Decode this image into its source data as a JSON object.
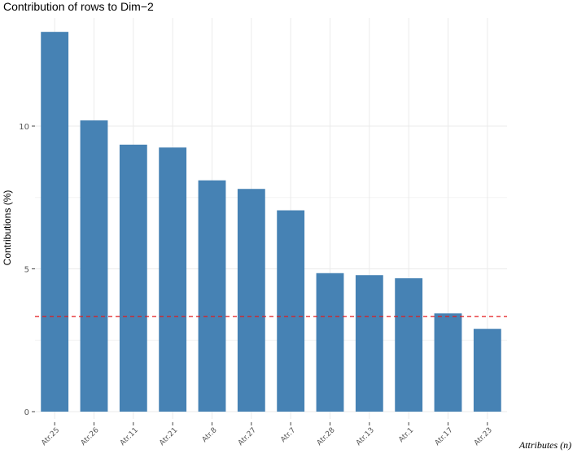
{
  "chart_data": {
    "type": "bar",
    "title": "Contribution of rows to Dim−2",
    "xlabel": "Attributes (n)",
    "ylabel": "Contributions (%)",
    "categories": [
      "Atr.25",
      "Atr.26",
      "Atr.11",
      "Atr.21",
      "Atr.8",
      "Atr.27",
      "Atr.7",
      "Atr.28",
      "Atr.13",
      "Atr.1",
      "Atr.17",
      "Atr.23"
    ],
    "values": [
      13.3,
      10.2,
      9.35,
      9.25,
      8.1,
      7.8,
      7.05,
      4.85,
      4.78,
      4.67,
      3.44,
      2.9
    ],
    "reference_line": 3.33,
    "ylim": [
      0,
      13.9
    ],
    "yticks": [
      0,
      5,
      10
    ],
    "bar_color": "#4682B4",
    "reference_color": "#E31A1C",
    "grid": true
  }
}
